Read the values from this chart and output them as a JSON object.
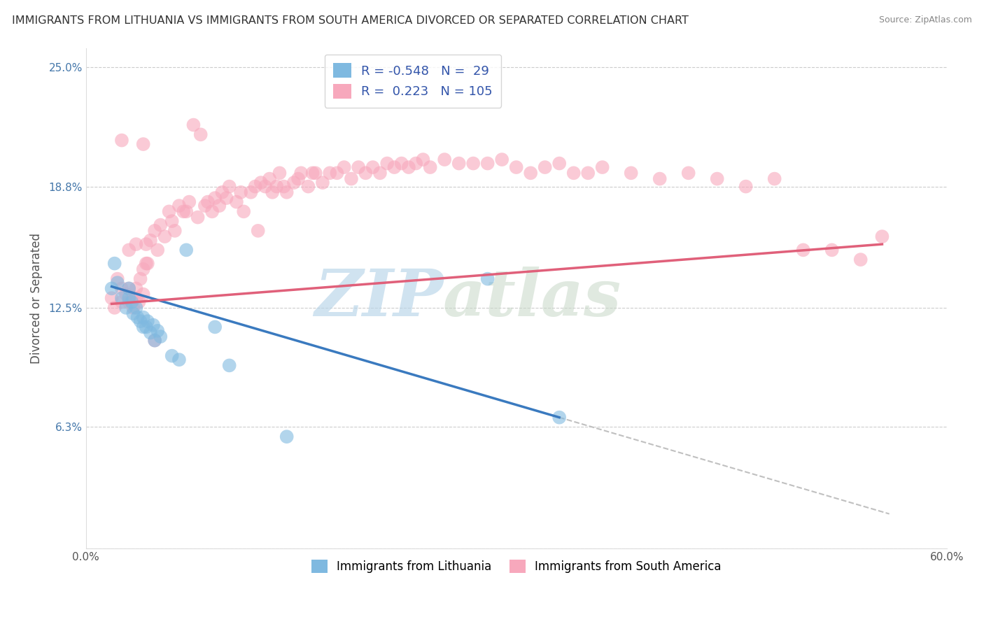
{
  "title": "IMMIGRANTS FROM LITHUANIA VS IMMIGRANTS FROM SOUTH AMERICA DIVORCED OR SEPARATED CORRELATION CHART",
  "source": "Source: ZipAtlas.com",
  "ylabel": "Divorced or Separated",
  "xlabel": "",
  "xlim": [
    0.0,
    0.6
  ],
  "ylim": [
    0.0,
    0.26
  ],
  "ytick_positions": [
    0.0,
    0.063,
    0.125,
    0.188,
    0.25
  ],
  "yticklabels": [
    "",
    "6.3%",
    "12.5%",
    "18.8%",
    "25.0%"
  ],
  "legend_r_blue": "-0.548",
  "legend_n_blue": "29",
  "legend_r_pink": "0.223",
  "legend_n_pink": "105",
  "color_blue": "#7fb9e0",
  "color_pink": "#f7a8bc",
  "color_line_blue": "#3a7abf",
  "color_line_pink": "#e0607a",
  "color_line_gray": "#c0c0c0",
  "watermark_zip": "ZIP",
  "watermark_atlas": "atlas",
  "background_color": "#ffffff",
  "grid_color": "#cccccc",
  "blue_x": [
    0.018,
    0.02,
    0.022,
    0.025,
    0.028,
    0.03,
    0.03,
    0.032,
    0.033,
    0.035,
    0.036,
    0.038,
    0.04,
    0.04,
    0.042,
    0.043,
    0.045,
    0.047,
    0.048,
    0.05,
    0.052,
    0.06,
    0.065,
    0.07,
    0.09,
    0.1,
    0.14,
    0.28,
    0.33
  ],
  "blue_y": [
    0.135,
    0.148,
    0.138,
    0.13,
    0.125,
    0.13,
    0.135,
    0.128,
    0.122,
    0.125,
    0.12,
    0.118,
    0.115,
    0.12,
    0.115,
    0.118,
    0.112,
    0.116,
    0.108,
    0.113,
    0.11,
    0.1,
    0.098,
    0.155,
    0.115,
    0.095,
    0.058,
    0.14,
    0.068
  ],
  "pink_x": [
    0.018,
    0.02,
    0.022,
    0.025,
    0.025,
    0.028,
    0.03,
    0.03,
    0.032,
    0.033,
    0.035,
    0.035,
    0.037,
    0.038,
    0.04,
    0.04,
    0.042,
    0.043,
    0.045,
    0.048,
    0.05,
    0.052,
    0.055,
    0.058,
    0.06,
    0.062,
    0.065,
    0.068,
    0.07,
    0.072,
    0.075,
    0.078,
    0.08,
    0.083,
    0.085,
    0.088,
    0.09,
    0.093,
    0.095,
    0.098,
    0.1,
    0.105,
    0.108,
    0.11,
    0.115,
    0.118,
    0.12,
    0.122,
    0.125,
    0.128,
    0.13,
    0.133,
    0.135,
    0.138,
    0.14,
    0.145,
    0.148,
    0.15,
    0.155,
    0.158,
    0.16,
    0.165,
    0.17,
    0.175,
    0.18,
    0.185,
    0.19,
    0.195,
    0.2,
    0.205,
    0.21,
    0.215,
    0.22,
    0.225,
    0.23,
    0.235,
    0.24,
    0.25,
    0.26,
    0.27,
    0.28,
    0.29,
    0.3,
    0.31,
    0.32,
    0.33,
    0.34,
    0.35,
    0.36,
    0.38,
    0.4,
    0.42,
    0.44,
    0.46,
    0.48,
    0.5,
    0.52,
    0.54,
    0.555,
    0.04,
    0.025,
    0.03,
    0.035,
    0.042,
    0.048
  ],
  "pink_y": [
    0.13,
    0.125,
    0.14,
    0.135,
    0.128,
    0.132,
    0.128,
    0.135,
    0.13,
    0.125,
    0.13,
    0.135,
    0.128,
    0.14,
    0.132,
    0.145,
    0.158,
    0.148,
    0.16,
    0.165,
    0.155,
    0.168,
    0.162,
    0.175,
    0.17,
    0.165,
    0.178,
    0.175,
    0.175,
    0.18,
    0.22,
    0.172,
    0.215,
    0.178,
    0.18,
    0.175,
    0.182,
    0.178,
    0.185,
    0.182,
    0.188,
    0.18,
    0.185,
    0.175,
    0.185,
    0.188,
    0.165,
    0.19,
    0.188,
    0.192,
    0.185,
    0.188,
    0.195,
    0.188,
    0.185,
    0.19,
    0.192,
    0.195,
    0.188,
    0.195,
    0.195,
    0.19,
    0.195,
    0.195,
    0.198,
    0.192,
    0.198,
    0.195,
    0.198,
    0.195,
    0.2,
    0.198,
    0.2,
    0.198,
    0.2,
    0.202,
    0.198,
    0.202,
    0.2,
    0.2,
    0.2,
    0.202,
    0.198,
    0.195,
    0.198,
    0.2,
    0.195,
    0.195,
    0.198,
    0.195,
    0.192,
    0.195,
    0.192,
    0.188,
    0.192,
    0.155,
    0.155,
    0.15,
    0.162,
    0.21,
    0.212,
    0.155,
    0.158,
    0.148,
    0.108
  ],
  "blue_line_x0": 0.018,
  "blue_line_x1": 0.33,
  "blue_line_y0": 0.136,
  "blue_line_y1": 0.068,
  "gray_line_x0": 0.33,
  "gray_line_x1": 0.56,
  "pink_line_x0": 0.018,
  "pink_line_x1": 0.555,
  "pink_line_y0": 0.127,
  "pink_line_y1": 0.158
}
